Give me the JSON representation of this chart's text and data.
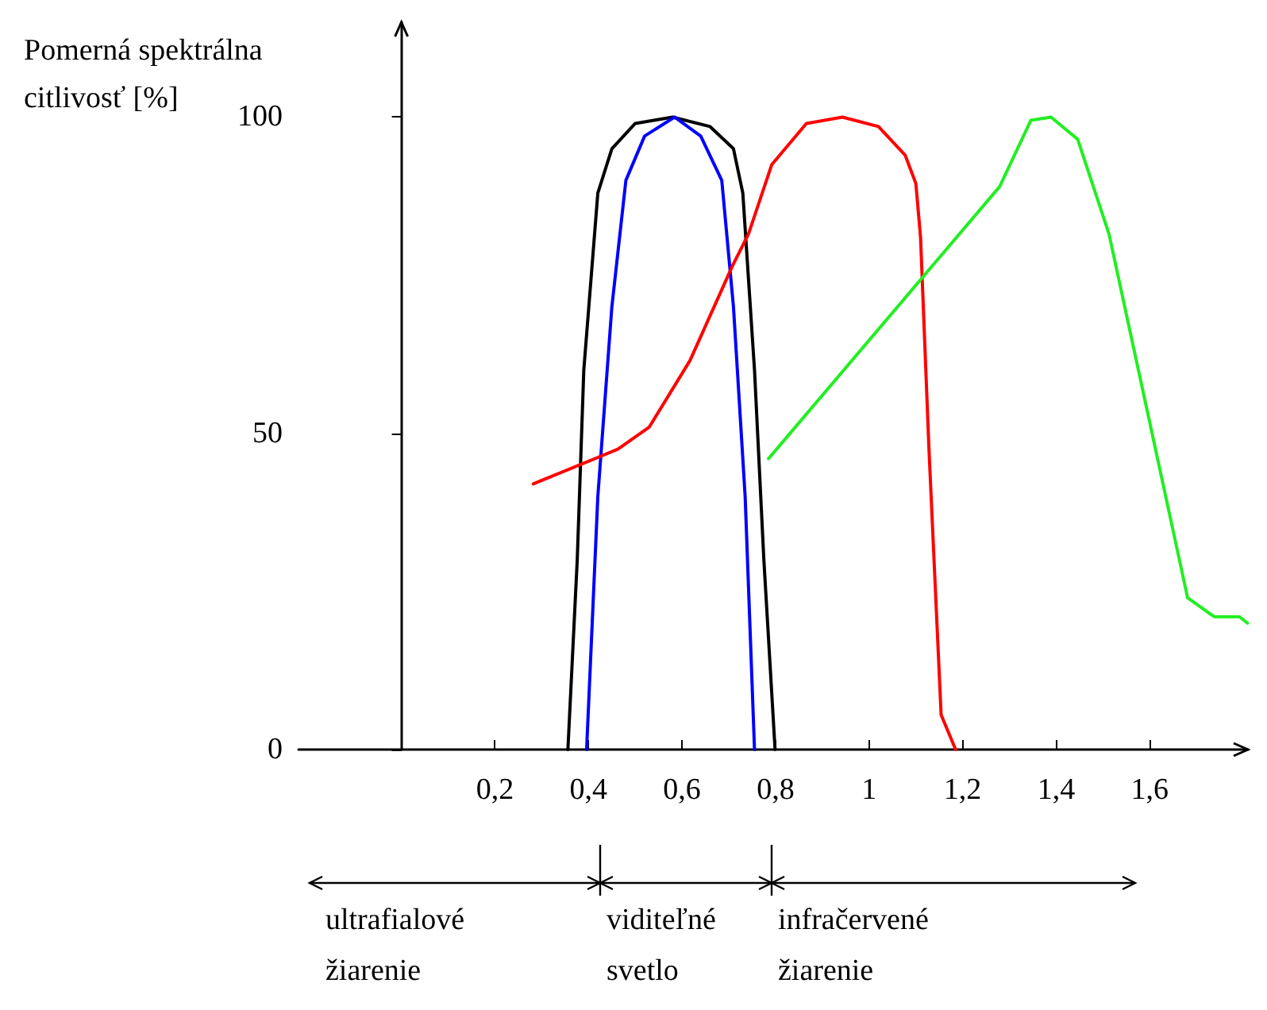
{
  "chart_data": {
    "type": "line",
    "ylabel": "Pomerná spektrálna citlivosť [%]",
    "xlim": [
      -0.22,
      1.81
    ],
    "ylim": [
      0,
      115
    ],
    "xticks": [
      {
        "value": 0.2,
        "label": "0,2"
      },
      {
        "value": 0.4,
        "label": "0,4"
      },
      {
        "value": 0.6,
        "label": "0,6"
      },
      {
        "value": 0.8,
        "label": "0,8"
      },
      {
        "value": 1,
        "label": "1"
      },
      {
        "value": 1.2,
        "label": "1,2"
      },
      {
        "value": 1.4,
        "label": "1,4"
      },
      {
        "value": 1.6,
        "label": "1,6"
      }
    ],
    "yticks": [
      0,
      50,
      100
    ],
    "grid": false,
    "marker": "none",
    "line_style": "solid",
    "series": [
      {
        "color": "#000000",
        "x": [
          0.356,
          0.376,
          0.39,
          0.42,
          0.45,
          0.5,
          0.58,
          0.66,
          0.71,
          0.73,
          0.755,
          0.775,
          0.799
        ],
        "values": [
          0,
          30,
          60,
          88,
          95,
          99,
          100,
          98.5,
          95,
          88,
          60,
          30,
          0
        ]
      },
      {
        "color": "#0000ff",
        "x": [
          0.396,
          0.42,
          0.45,
          0.48,
          0.52,
          0.584,
          0.64,
          0.685,
          0.71,
          0.735,
          0.755
        ],
        "values": [
          0,
          40,
          70,
          90,
          97,
          100,
          97,
          90,
          70,
          40,
          0
        ]
      },
      {
        "color": "#ff0000",
        "x": [
          0.282,
          0.463,
          0.53,
          0.617,
          0.708,
          0.742,
          0.792,
          0.866,
          0.943,
          1.02,
          1.077,
          1.1,
          1.11,
          1.128,
          1.154,
          1.185
        ],
        "values": [
          42,
          47.5,
          51,
          61.5,
          76.5,
          81.5,
          92.5,
          99,
          100,
          98.5,
          94,
          89.5,
          81,
          47.5,
          5.5,
          0
        ]
      },
      {
        "color": "#22ee22",
        "x": [
          0.785,
          1.279,
          1.346,
          1.389,
          1.446,
          1.513,
          1.681,
          1.738,
          1.792,
          1.809
        ],
        "values": [
          46,
          89,
          99.5,
          100,
          96.5,
          81.5,
          24,
          21,
          21,
          20
        ]
      }
    ],
    "annotations": [
      "ultrafialové žiarenie",
      "viditeľné svetlo",
      "infračervené žiarenie"
    ]
  }
}
